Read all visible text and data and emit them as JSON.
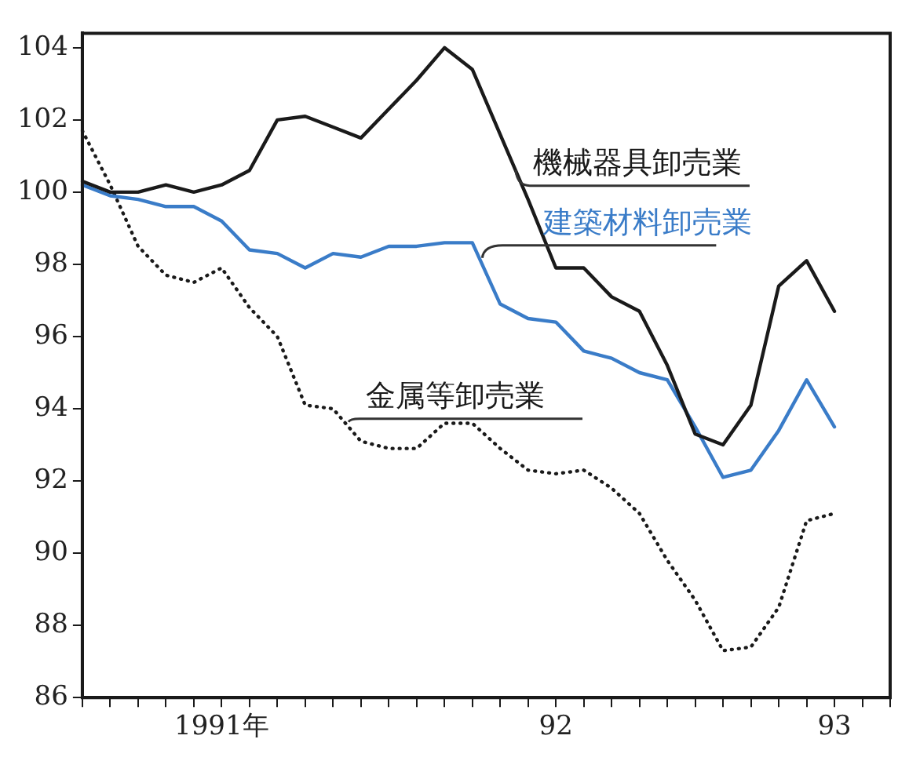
{
  "chart_data": {
    "type": "line",
    "categories": [
      null,
      null,
      null,
      null,
      null,
      "1991年",
      null,
      null,
      null,
      null,
      null,
      null,
      null,
      null,
      null,
      null,
      null,
      "92",
      null,
      null,
      null,
      null,
      null,
      null,
      null,
      null,
      null,
      "93",
      null,
      null
    ],
    "series": [
      {
        "name": "機械器具卸売業",
        "color": "#1a1a1a",
        "line_style": "solid",
        "values": [
          100.3,
          100.0,
          100.0,
          100.2,
          100.0,
          100.2,
          100.6,
          102.0,
          102.1,
          101.8,
          101.5,
          102.3,
          103.1,
          104.0,
          103.4,
          101.6,
          99.8,
          97.9,
          97.9,
          97.1,
          96.7,
          95.2,
          93.3,
          93.0,
          94.1,
          97.4,
          98.1,
          96.7,
          null,
          null
        ]
      },
      {
        "name": "建築材料卸売業",
        "color": "#3a7cc8",
        "line_style": "solid",
        "values": [
          100.2,
          99.9,
          99.8,
          99.6,
          99.6,
          99.2,
          98.4,
          98.3,
          97.9,
          98.3,
          98.2,
          98.5,
          98.5,
          98.6,
          98.6,
          96.9,
          96.5,
          96.4,
          95.6,
          95.4,
          95.0,
          94.8,
          93.5,
          92.1,
          92.3,
          93.4,
          94.8,
          93.5,
          null,
          null
        ]
      },
      {
        "name": "金属等卸売業",
        "color": "#1a1a1a",
        "line_style": "dotted",
        "values": [
          101.7,
          100.2,
          98.5,
          97.7,
          97.5,
          97.9,
          96.8,
          96.0,
          94.1,
          94.0,
          93.1,
          92.9,
          92.9,
          93.6,
          93.6,
          92.9,
          92.3,
          92.2,
          92.3,
          91.8,
          91.1,
          89.8,
          88.7,
          87.3,
          87.4,
          88.5,
          90.9,
          91.1,
          null,
          null
        ]
      }
    ],
    "ylim": [
      86,
      104.4
    ],
    "yticks": [
      86,
      88,
      90,
      92,
      94,
      96,
      98,
      100,
      102,
      104
    ],
    "grid": false,
    "legend": false,
    "marker": "none"
  }
}
